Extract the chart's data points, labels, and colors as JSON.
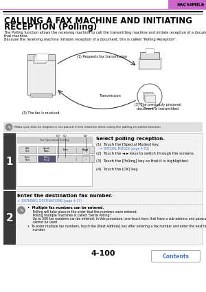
{
  "page_num": "4-100",
  "header_label": "FACSIMILE",
  "header_bar_color": "#dd88dd",
  "title_line1": "CALLING A FAX MACHINE AND INITIATING",
  "title_line2": "RECEPTION (Polling)",
  "desc1": "The Polling function allows the receiving machine to call the transmitting machine and initiate reception of a document in",
  "desc2": "that machine.",
  "desc3": "Because the receiving machine initiates reception of a document, this is called “Polling Reception”.",
  "note_text": "Make sure that an original is not placed in the machine when using the polling reception function.",
  "diagram_label1": "(1) Requests fax transmission",
  "diagram_label2": "Transmission",
  "diagram_label3": "(3) The fax is received.",
  "diagram_label4": "(2) The previously prepared\ndocument is transmitted.",
  "step1_title": "Select polling reception.",
  "step1_1": "(1)  Touch the [Special Modes] key.",
  "step1_ref": "→ SPECIAL MODES (page 4-70)",
  "step1_2": "(2)  Touch the ◄ ► keys to switch through the screens.",
  "step1_3": "(3)  Touch the [Polling] key so that it is highlighted.",
  "step1_4": "(4)  Touch the [OK] key.",
  "step2_title": "Enter the destination fax number.",
  "step2_ref": "→ ENTERING DESTINATIONS (page 4-17)",
  "step2_b": "•  Multiple fax numbers can be entered.",
  "step2_n1": "     Polling will take place in the order that the numbers were entered.",
  "step2_n2": "     Polling multiple machines is called “Serial Polling”.",
  "step2_n3": "     Up to 500 fax numbers can be entered. In this procedure, one-touch keys that have a sub-address and passcode",
  "step2_n4": "     cannot be used.",
  "step2_n5": "•  To enter multiple fax numbers, touch the [Next Address] key after entering a fax number and enter the next fax",
  "step2_n6": "     number.",
  "contents_label": "Contents",
  "bg": "#ffffff",
  "header_bar": "#cc66cc",
  "step_dark": "#3a3a3a",
  "step_light": "#f2f2f2",
  "note_bg": "#e0e0e0",
  "blue": "#4477cc",
  "screen_bg": "#e8e8e8"
}
